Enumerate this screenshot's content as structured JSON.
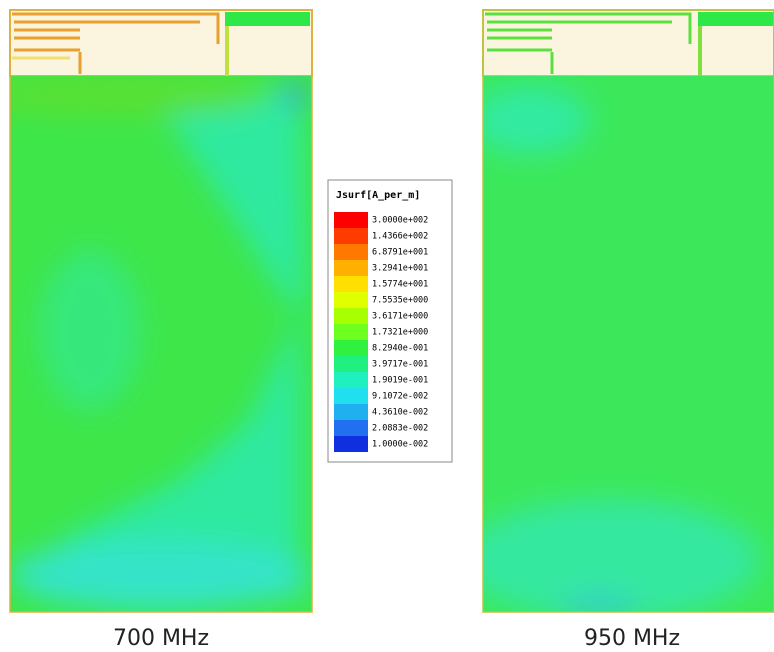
{
  "legend": {
    "title": "Jsurf[A_per_m]",
    "labels": [
      "3.0000e+002",
      "1.4366e+002",
      "6.8791e+001",
      "3.2941e+001",
      "1.5774e+001",
      "7.5535e+000",
      "3.6171e+000",
      "1.7321e+000",
      "8.2940e-001",
      "3.9717e-001",
      "1.9019e-001",
      "9.1072e-002",
      "4.3610e-002",
      "2.0883e-002",
      "1.0000e-002"
    ]
  },
  "panels": [
    {
      "caption": "700 MHz"
    },
    {
      "caption": "950 MHz"
    }
  ]
}
